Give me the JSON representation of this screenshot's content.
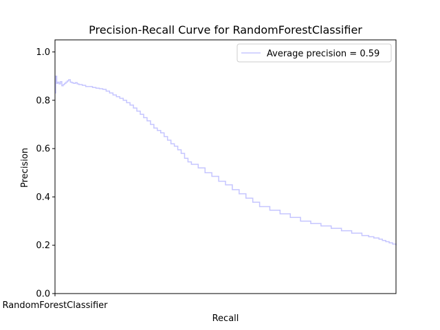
{
  "chart_data": {
    "type": "line",
    "title": "Precision-Recall Curve for RandomForestClassifier",
    "xlabel": "Recall",
    "ylabel": "Precision",
    "xlim": [
      0,
      1
    ],
    "ylim": [
      0,
      1.05
    ],
    "x_tick_labels": [
      "RandomForestClassifier"
    ],
    "y_ticks": [
      "0.0",
      "0.2",
      "0.4",
      "0.6",
      "0.8",
      "1.0"
    ],
    "grid": false,
    "legend_position": "upper right",
    "line_color": "#c5c5ff",
    "series": [
      {
        "name": "Average precision = 0.59",
        "step": true,
        "x": [
          0.0,
          0.002,
          0.005,
          0.008,
          0.012,
          0.016,
          0.02,
          0.024,
          0.028,
          0.032,
          0.036,
          0.04,
          0.045,
          0.05,
          0.055,
          0.06,
          0.065,
          0.07,
          0.08,
          0.09,
          0.1,
          0.11,
          0.12,
          0.13,
          0.14,
          0.15,
          0.16,
          0.17,
          0.18,
          0.19,
          0.2,
          0.21,
          0.22,
          0.23,
          0.24,
          0.25,
          0.26,
          0.27,
          0.28,
          0.29,
          0.3,
          0.31,
          0.32,
          0.33,
          0.34,
          0.35,
          0.36,
          0.37,
          0.38,
          0.39,
          0.4,
          0.42,
          0.44,
          0.46,
          0.48,
          0.5,
          0.52,
          0.54,
          0.56,
          0.58,
          0.6,
          0.63,
          0.66,
          0.69,
          0.72,
          0.75,
          0.78,
          0.81,
          0.84,
          0.87,
          0.9,
          0.92,
          0.935,
          0.95,
          0.96,
          0.97,
          0.98,
          0.99,
          1.0
        ],
        "y": [
          0.83,
          0.9,
          0.87,
          0.875,
          0.868,
          0.877,
          0.86,
          0.865,
          0.87,
          0.875,
          0.88,
          0.885,
          0.875,
          0.872,
          0.87,
          0.873,
          0.868,
          0.865,
          0.862,
          0.857,
          0.857,
          0.853,
          0.85,
          0.848,
          0.845,
          0.838,
          0.83,
          0.822,
          0.815,
          0.808,
          0.8,
          0.79,
          0.78,
          0.768,
          0.755,
          0.742,
          0.728,
          0.715,
          0.7,
          0.685,
          0.675,
          0.665,
          0.65,
          0.635,
          0.62,
          0.61,
          0.595,
          0.58,
          0.56,
          0.545,
          0.535,
          0.52,
          0.5,
          0.485,
          0.465,
          0.45,
          0.43,
          0.413,
          0.395,
          0.378,
          0.36,
          0.345,
          0.33,
          0.315,
          0.3,
          0.29,
          0.28,
          0.27,
          0.26,
          0.25,
          0.24,
          0.235,
          0.23,
          0.225,
          0.22,
          0.215,
          0.21,
          0.205,
          0.2
        ]
      }
    ]
  }
}
